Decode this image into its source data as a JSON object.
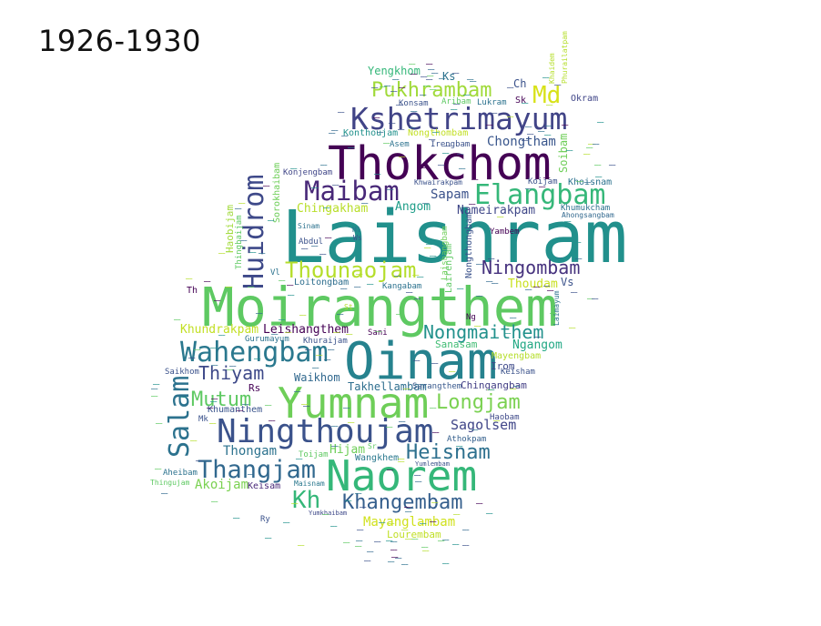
{
  "title": "1926-1930",
  "words": [
    {
      "text": "Laishram",
      "color": "#21908c"
    },
    {
      "text": "Moirangthem",
      "color": "#5ec962"
    },
    {
      "text": "Thokchom",
      "color": "#440154"
    },
    {
      "text": "Oinam",
      "color": "#26828e"
    },
    {
      "text": "Naorem",
      "color": "#35b779"
    },
    {
      "text": "Yumnam",
      "color": "#6ece58"
    },
    {
      "text": "Ningthoujam",
      "color": "#3b528b"
    },
    {
      "text": "Kshetrimayum",
      "color": "#414487"
    },
    {
      "text": "Elangbam",
      "color": "#35b779"
    },
    {
      "text": "Maibam",
      "color": "#482878"
    },
    {
      "text": "Wahengbam",
      "color": "#2a788e"
    },
    {
      "text": "Huidrom",
      "color": "#3e4989"
    },
    {
      "text": "Thounaojam",
      "color": "#b5de2b"
    },
    {
      "text": "Salam",
      "color": "#2c728e"
    },
    {
      "text": "Thangjam",
      "color": "#31688e"
    },
    {
      "text": "Pukhrambam",
      "color": "#a0da39"
    },
    {
      "text": "Nongmaithem",
      "color": "#21918c"
    },
    {
      "text": "Khangembam",
      "color": "#355f8d"
    },
    {
      "text": "Heisnam",
      "color": "#2d708e"
    },
    {
      "text": "Longjam",
      "color": "#7ad151"
    },
    {
      "text": "Ningombam",
      "color": "#46327e"
    },
    {
      "text": "Mutum",
      "color": "#5ec962"
    },
    {
      "text": "Thiyam",
      "color": "#3e4989"
    },
    {
      "text": "Kh",
      "color": "#35b779"
    },
    {
      "text": "Md",
      "color": "#d8e219"
    },
    {
      "text": "Mayanglambam",
      "color": "#d0e11c"
    },
    {
      "text": "Sagolsem",
      "color": "#404688"
    },
    {
      "text": "Chongtham",
      "color": "#39568c"
    },
    {
      "text": "Nameirakpam",
      "color": "#3f4788"
    },
    {
      "text": "Leishangthem",
      "color": "#440154"
    },
    {
      "text": "Sapam",
      "color": "#3b528b"
    },
    {
      "text": "Chingakham",
      "color": "#b8de29"
    },
    {
      "text": "Angom",
      "color": "#1f9e89"
    },
    {
      "text": "Khundrakpam",
      "color": "#c2df23"
    },
    {
      "text": "Thongam",
      "color": "#2c728e"
    },
    {
      "text": "Akoijam",
      "color": "#7ad151"
    },
    {
      "text": "Keisam",
      "color": "#482878"
    },
    {
      "text": "Hijam",
      "color": "#6ece58"
    },
    {
      "text": "Wangkhem",
      "color": "#2a788e"
    },
    {
      "text": "Thoudam",
      "color": "#c8e020"
    },
    {
      "text": "Ngangom",
      "color": "#22a884"
    },
    {
      "text": "Sanasam",
      "color": "#3fbc73"
    },
    {
      "text": "Mayengbam",
      "color": "#b5de2b"
    },
    {
      "text": "Irom",
      "color": "#3e4989"
    },
    {
      "text": "Keisham",
      "color": "#3b528b"
    },
    {
      "text": "Chingangbam",
      "color": "#433e85"
    },
    {
      "text": "Haobam",
      "color": "#3e4989"
    },
    {
      "text": "Athokpam",
      "color": "#35608d"
    },
    {
      "text": "Lourembam",
      "color": "#c0df25"
    },
    {
      "text": "Takhellambam",
      "color": "#2e6e8e"
    },
    {
      "text": "Sarangthem",
      "color": "#38588c"
    },
    {
      "text": "Waikhom",
      "color": "#31688e"
    },
    {
      "text": "Khumanthem",
      "color": "#3a548c"
    },
    {
      "text": "Gurumayum",
      "color": "#2c728e"
    },
    {
      "text": "Sani",
      "color": "#440154"
    },
    {
      "text": "Khuraijam",
      "color": "#3b528b"
    },
    {
      "text": "Saikhom",
      "color": "#3b528b"
    },
    {
      "text": "Aheibam",
      "color": "#2c728e"
    },
    {
      "text": "Thingujam",
      "color": "#5ec962"
    },
    {
      "text": "Maisnam",
      "color": "#2a788e"
    },
    {
      "text": "Yumkhaibam",
      "color": "#3e4989"
    },
    {
      "text": "Toijam",
      "color": "#5ec962"
    },
    {
      "text": "Yumlembam",
      "color": "#3b528b"
    },
    {
      "text": "Loitongbam",
      "color": "#2e6e8e"
    },
    {
      "text": "Kangabam",
      "color": "#2c728e"
    },
    {
      "text": "Abdul",
      "color": "#3b528b"
    },
    {
      "text": "Sinam",
      "color": "#2c728e"
    },
    {
      "text": "Konjengbam",
      "color": "#404688"
    },
    {
      "text": "Sorokhaibam",
      "color": "#6ece58"
    },
    {
      "text": "Haobijam",
      "color": "#a0da39"
    },
    {
      "text": "Thingbaijam",
      "color": "#5ec962"
    },
    {
      "text": "Yengkhom",
      "color": "#35b779"
    },
    {
      "text": "Ks",
      "color": "#2c728e"
    },
    {
      "text": "Konsam",
      "color": "#3b528b"
    },
    {
      "text": "Aribam",
      "color": "#5ec962"
    },
    {
      "text": "Lukram",
      "color": "#2c728e"
    },
    {
      "text": "Sk",
      "color": "#440154"
    },
    {
      "text": "Ch",
      "color": "#3b528b"
    },
    {
      "text": "Okram",
      "color": "#404688"
    },
    {
      "text": "Konthoujam",
      "color": "#21918c"
    },
    {
      "text": "Nongthombam",
      "color": "#c2df23"
    },
    {
      "text": "Asem",
      "color": "#2c728e"
    },
    {
      "text": "Irengbam",
      "color": "#3b528b"
    },
    {
      "text": "Soibam",
      "color": "#6ece58"
    },
    {
      "text": "Khaidem",
      "color": "#b5de2b"
    },
    {
      "text": "Phurailatpam",
      "color": "#b5de2b"
    },
    {
      "text": "Koijam",
      "color": "#3b528b"
    },
    {
      "text": "Khoisnam",
      "color": "#2c728e"
    },
    {
      "text": "Khumukcham",
      "color": "#2c728e"
    },
    {
      "text": "Ahongsangbam",
      "color": "#31688e"
    },
    {
      "text": "Khwairakpam",
      "color": "#3b528b"
    },
    {
      "text": "Yambem",
      "color": "#440154"
    },
    {
      "text": "Vs",
      "color": "#3b528b"
    },
    {
      "text": "Laishangbam",
      "color": "#6ece58"
    },
    {
      "text": "Nongthongbam",
      "color": "#3b528b"
    },
    {
      "text": "Lairenjam",
      "color": "#5ec962"
    },
    {
      "text": "Laimayum",
      "color": "#2c728e"
    },
    {
      "text": "Ws",
      "color": "#3b528b"
    },
    {
      "text": "Hl",
      "color": "#2c728e"
    },
    {
      "text": "Vl",
      "color": "#2c728e"
    },
    {
      "text": "Th",
      "color": "#440154"
    },
    {
      "text": "Mk",
      "color": "#3b528b"
    },
    {
      "text": "Rs",
      "color": "#440154"
    },
    {
      "text": "Ry",
      "color": "#3b528b"
    },
    {
      "text": "Ng",
      "color": "#440154"
    },
    {
      "text": "St",
      "color": "#b5de2b"
    },
    {
      "text": "Sr",
      "color": "#5ec962"
    }
  ]
}
